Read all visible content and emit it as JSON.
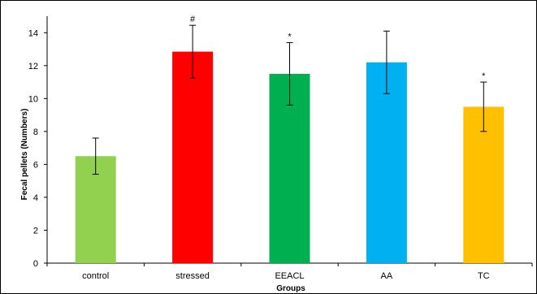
{
  "chart_data": {
    "type": "bar",
    "title": "",
    "xlabel": "Groups",
    "ylabel": "Fecal pellets (Numbers)",
    "ylim": [
      0,
      15
    ],
    "yticks": [
      0,
      2,
      4,
      6,
      8,
      10,
      12,
      14
    ],
    "grid": false,
    "legend": "none",
    "categories": [
      "control",
      "stressed",
      "EEACL",
      "AA",
      "TC"
    ],
    "values": [
      6.5,
      12.85,
      11.5,
      12.2,
      9.5
    ],
    "errors": [
      1.1,
      1.6,
      1.9,
      1.9,
      1.5
    ],
    "significance": [
      "",
      "#",
      "*",
      "",
      "*"
    ],
    "colors": [
      "#92D050",
      "#FF0000",
      "#00B050",
      "#00B0F0",
      "#FFC000"
    ]
  }
}
